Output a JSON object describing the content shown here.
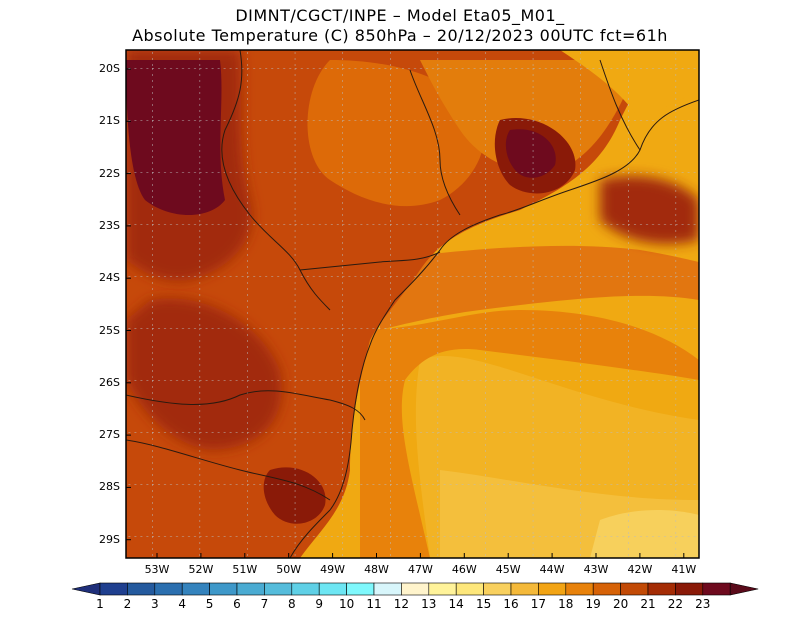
{
  "header": {
    "line1": "DIMNT/CGCT/INPE –  Model Eta05_M01_",
    "line2": "Absolute Temperature (C) 850hPa –  20/12/2023 00UTC fct=61h"
  },
  "axes": {
    "latitude_labels": [
      "20S",
      "21S",
      "22S",
      "23S",
      "24S",
      "25S",
      "26S",
      "27S",
      "28S",
      "29S"
    ],
    "longitude_labels": [
      "53W",
      "52W",
      "51W",
      "50W",
      "49W",
      "48W",
      "47W",
      "46W",
      "45W",
      "44W",
      "43W",
      "42W",
      "41W"
    ]
  },
  "colorbar": {
    "labels": [
      "1",
      "2",
      "3",
      "4",
      "5",
      "6",
      "7",
      "8",
      "9",
      "10",
      "11",
      "12",
      "13",
      "14",
      "15",
      "16",
      "17",
      "18",
      "19",
      "20",
      "21",
      "22",
      "23"
    ],
    "colors": [
      "#1f3f8f",
      "#245a9e",
      "#2b6faf",
      "#3483bd",
      "#3e98c9",
      "#4aabd2",
      "#55bcdb",
      "#5fd0e6",
      "#6de6f3",
      "#7ff8fc",
      "#d8f6fb",
      "#fff4cc",
      "#fff39a",
      "#fde77b",
      "#f8d05e",
      "#f4b93a",
      "#f2a414",
      "#e8820b",
      "#d66207",
      "#c24a06",
      "#a42c05",
      "#8a1a08",
      "#6e0a1e"
    ],
    "end_low": "#1f2f7a",
    "end_high": "#5a0a1a"
  },
  "map": {
    "ocean_base": "#f0a912",
    "land_base": "#c6490a"
  }
}
